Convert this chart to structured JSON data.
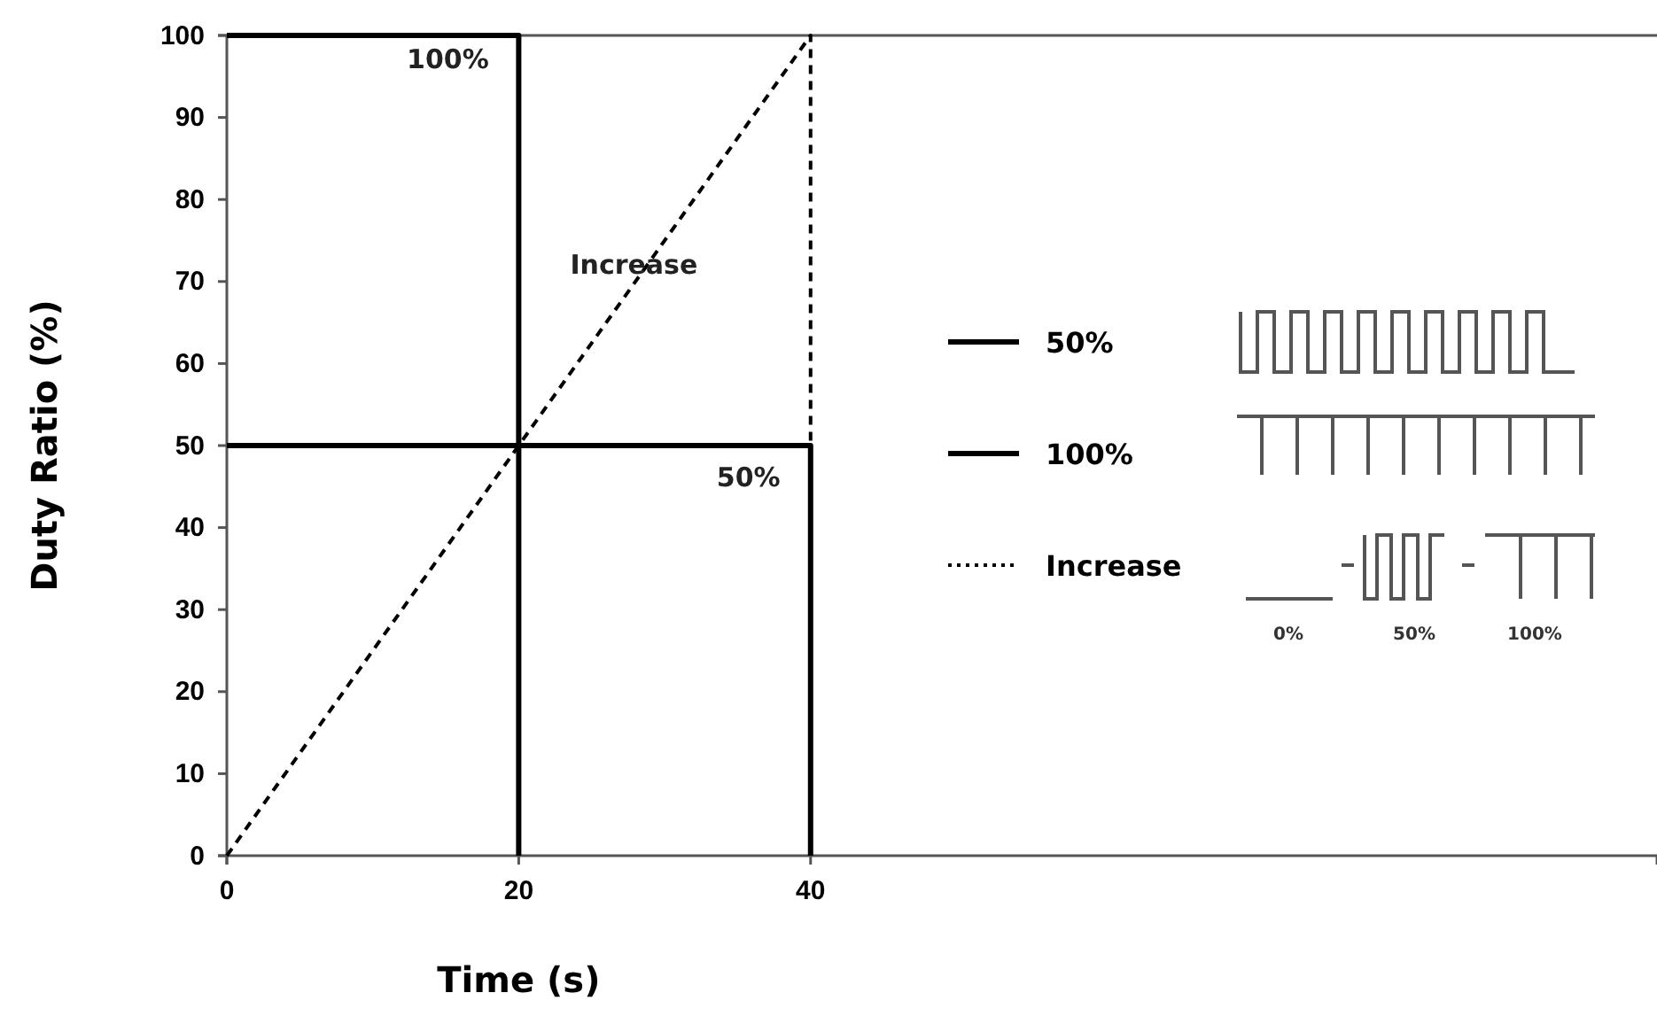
{
  "chart_data": {
    "type": "line",
    "xlabel": "Time (s)",
    "ylabel": "Duty Ratio (%)",
    "xlim": [
      0,
      98
    ],
    "xticks": [
      0,
      20,
      40
    ],
    "ylim": [
      0,
      100
    ],
    "yticks": [
      0,
      10,
      20,
      30,
      40,
      50,
      60,
      70,
      80,
      90,
      100
    ],
    "legend": "right",
    "grid": false,
    "marker": "none",
    "series": [
      {
        "name": "50%",
        "color": "#000000",
        "line_style": "solid",
        "x": [
          0,
          40,
          40
        ],
        "values": [
          50,
          50,
          0
        ]
      },
      {
        "name": "100%",
        "color": "#000000",
        "line_style": "solid",
        "x": [
          0,
          20,
          20
        ],
        "values": [
          100,
          100,
          0
        ]
      },
      {
        "name": "Increase",
        "color": "#000000",
        "line_style": "dashed",
        "x": [
          0,
          40,
          40
        ],
        "values": [
          0,
          100,
          50
        ]
      }
    ],
    "annotations": [
      "100%",
      "Increase",
      "50%",
      "0%",
      "50%",
      "100%"
    ]
  }
}
